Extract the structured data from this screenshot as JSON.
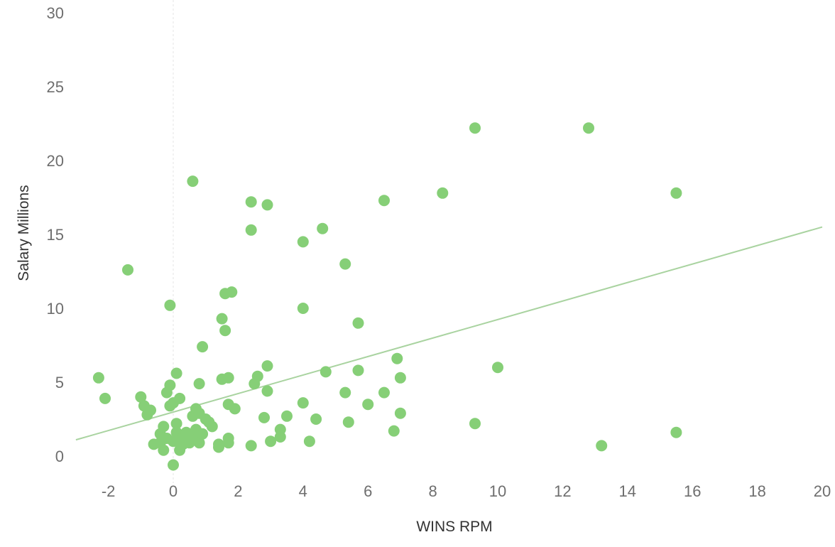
{
  "chart_data": {
    "type": "scatter",
    "title": "",
    "xlabel": "WINS RPM",
    "ylabel": "Salary Millions",
    "xlim": [
      -3,
      20
    ],
    "ylim": [
      -1,
      30
    ],
    "x_ticks": [
      -2,
      0,
      2,
      4,
      6,
      8,
      10,
      12,
      14,
      16,
      18,
      20
    ],
    "y_ticks": [
      0,
      5,
      10,
      15,
      20,
      25,
      30
    ],
    "grid": false,
    "legend": "none",
    "point_color": "#86cf77",
    "trend_color": "#a9d3a0",
    "trend_line": {
      "x1": -3,
      "y1": 1.1,
      "x2": 20,
      "y2": 15.5
    },
    "points": [
      {
        "x": -2.3,
        "y": 5.3
      },
      {
        "x": -2.1,
        "y": 3.9
      },
      {
        "x": -1.4,
        "y": 12.6
      },
      {
        "x": -1.0,
        "y": 4.0
      },
      {
        "x": -0.9,
        "y": 3.4
      },
      {
        "x": -0.8,
        "y": 2.8
      },
      {
        "x": -0.7,
        "y": 3.1
      },
      {
        "x": -0.6,
        "y": 0.8
      },
      {
        "x": -0.4,
        "y": 0.9
      },
      {
        "x": -0.4,
        "y": 1.5
      },
      {
        "x": -0.3,
        "y": 0.4
      },
      {
        "x": -0.3,
        "y": 2.0
      },
      {
        "x": -0.2,
        "y": 4.3
      },
      {
        "x": -0.2,
        "y": 1.2
      },
      {
        "x": -0.1,
        "y": 4.8
      },
      {
        "x": -0.1,
        "y": 3.4
      },
      {
        "x": -0.1,
        "y": 10.2
      },
      {
        "x": 0.0,
        "y": -0.6
      },
      {
        "x": 0.0,
        "y": 3.6
      },
      {
        "x": 0.0,
        "y": 1.0
      },
      {
        "x": 0.1,
        "y": 5.6
      },
      {
        "x": 0.1,
        "y": 2.2
      },
      {
        "x": 0.1,
        "y": 1.6
      },
      {
        "x": 0.2,
        "y": 0.4
      },
      {
        "x": 0.2,
        "y": 3.9
      },
      {
        "x": 0.3,
        "y": 0.8
      },
      {
        "x": 0.3,
        "y": 1.3
      },
      {
        "x": 0.4,
        "y": 1.6
      },
      {
        "x": 0.5,
        "y": 0.9
      },
      {
        "x": 0.6,
        "y": 1.2
      },
      {
        "x": 0.6,
        "y": 2.7
      },
      {
        "x": 0.6,
        "y": 18.6
      },
      {
        "x": 0.7,
        "y": 3.2
      },
      {
        "x": 0.7,
        "y": 1.8
      },
      {
        "x": 0.8,
        "y": 0.9
      },
      {
        "x": 0.8,
        "y": 4.9
      },
      {
        "x": 0.8,
        "y": 2.9
      },
      {
        "x": 0.9,
        "y": 7.4
      },
      {
        "x": 0.9,
        "y": 1.5
      },
      {
        "x": 1.0,
        "y": 2.5
      },
      {
        "x": 1.1,
        "y": 2.3
      },
      {
        "x": 1.2,
        "y": 2.0
      },
      {
        "x": 1.4,
        "y": 0.6
      },
      {
        "x": 1.4,
        "y": 0.8
      },
      {
        "x": 1.5,
        "y": 5.2
      },
      {
        "x": 1.5,
        "y": 9.3
      },
      {
        "x": 1.6,
        "y": 8.5
      },
      {
        "x": 1.6,
        "y": 11.0
      },
      {
        "x": 1.7,
        "y": 0.9
      },
      {
        "x": 1.7,
        "y": 1.2
      },
      {
        "x": 1.7,
        "y": 5.3
      },
      {
        "x": 1.7,
        "y": 3.5
      },
      {
        "x": 1.8,
        "y": 11.1
      },
      {
        "x": 1.9,
        "y": 3.2
      },
      {
        "x": 2.4,
        "y": 0.7
      },
      {
        "x": 2.4,
        "y": 17.2
      },
      {
        "x": 2.4,
        "y": 15.3
      },
      {
        "x": 2.5,
        "y": 4.9
      },
      {
        "x": 2.6,
        "y": 5.4
      },
      {
        "x": 2.8,
        "y": 2.6
      },
      {
        "x": 2.9,
        "y": 17.0
      },
      {
        "x": 2.9,
        "y": 6.1
      },
      {
        "x": 2.9,
        "y": 4.4
      },
      {
        "x": 3.0,
        "y": 1.0
      },
      {
        "x": 3.3,
        "y": 1.8
      },
      {
        "x": 3.3,
        "y": 1.3
      },
      {
        "x": 3.5,
        "y": 2.7
      },
      {
        "x": 4.0,
        "y": 3.6
      },
      {
        "x": 4.0,
        "y": 14.5
      },
      {
        "x": 4.0,
        "y": 10.0
      },
      {
        "x": 4.2,
        "y": 1.0
      },
      {
        "x": 4.4,
        "y": 2.5
      },
      {
        "x": 4.6,
        "y": 15.4
      },
      {
        "x": 4.7,
        "y": 5.7
      },
      {
        "x": 5.3,
        "y": 4.3
      },
      {
        "x": 5.3,
        "y": 13.0
      },
      {
        "x": 5.4,
        "y": 2.3
      },
      {
        "x": 5.7,
        "y": 9.0
      },
      {
        "x": 5.7,
        "y": 5.8
      },
      {
        "x": 6.0,
        "y": 3.5
      },
      {
        "x": 6.5,
        "y": 17.3
      },
      {
        "x": 6.5,
        "y": 4.3
      },
      {
        "x": 6.8,
        "y": 1.7
      },
      {
        "x": 6.9,
        "y": 6.6
      },
      {
        "x": 7.0,
        "y": 5.3
      },
      {
        "x": 7.0,
        "y": 2.9
      },
      {
        "x": 8.3,
        "y": 17.8
      },
      {
        "x": 9.3,
        "y": 22.2
      },
      {
        "x": 9.3,
        "y": 2.2
      },
      {
        "x": 10.0,
        "y": 6.0
      },
      {
        "x": 12.8,
        "y": 22.2
      },
      {
        "x": 13.2,
        "y": 0.7
      },
      {
        "x": 15.5,
        "y": 17.8
      },
      {
        "x": 15.5,
        "y": 1.6
      }
    ]
  }
}
